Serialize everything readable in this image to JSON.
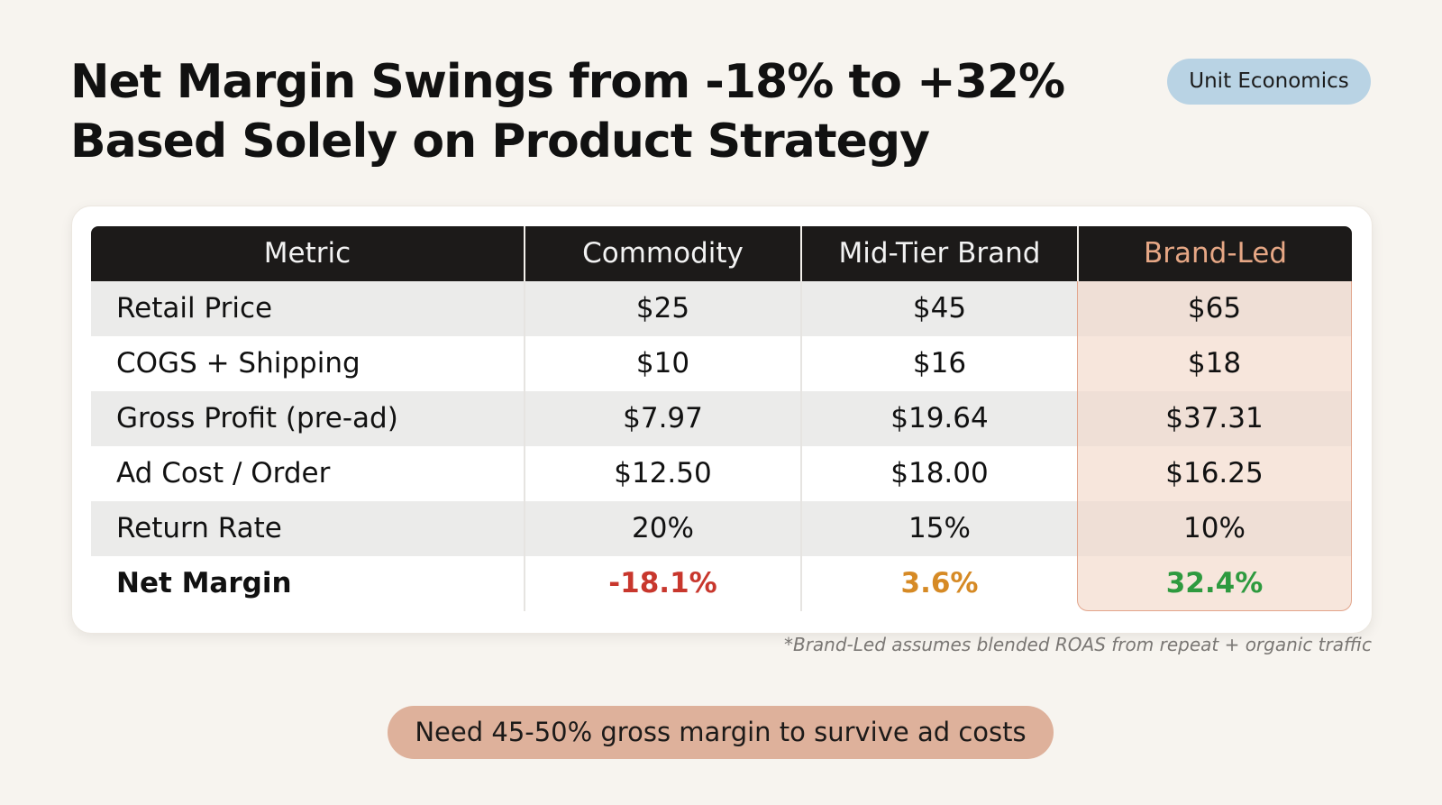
{
  "title": {
    "line1": "Net Margin Swings from -18% to +32%",
    "line2": "Based Solely on Product Strategy"
  },
  "tag_label": "Unit Economics",
  "table": {
    "headers": [
      "Metric",
      "Commodity",
      "Mid-Tier Brand",
      "Brand-Led"
    ],
    "rows": [
      {
        "metric": "Retail Price",
        "commodity": "$25",
        "mid_tier": "$45",
        "brand_led": "$65"
      },
      {
        "metric": "COGS + Shipping",
        "commodity": "$10",
        "mid_tier": "$16",
        "brand_led": "$18"
      },
      {
        "metric": "Gross Profit (pre-ad)",
        "commodity": "$7.97",
        "mid_tier": "$19.64",
        "brand_led": "$37.31"
      },
      {
        "metric": "Ad Cost / Order",
        "commodity": "$12.50",
        "mid_tier": "$18.00",
        "brand_led": "$16.25"
      },
      {
        "metric": "Return Rate",
        "commodity": "20%",
        "mid_tier": "15%",
        "brand_led": "10%"
      },
      {
        "metric": "Net Margin",
        "commodity": "-18.1%",
        "mid_tier": "3.6%",
        "brand_led": "32.4%"
      }
    ],
    "highlight_column": "Brand-Led"
  },
  "colors": {
    "negative": "#c8372d",
    "neutral": "#d68a25",
    "positive": "#2e9a3f",
    "highlight_fill": "#f7e6dc",
    "header_accent": "#e6a785"
  },
  "footnote": "*Brand-Led assumes blended ROAS from repeat + organic traffic",
  "callout": "Need 45-50% gross margin to survive ad costs"
}
